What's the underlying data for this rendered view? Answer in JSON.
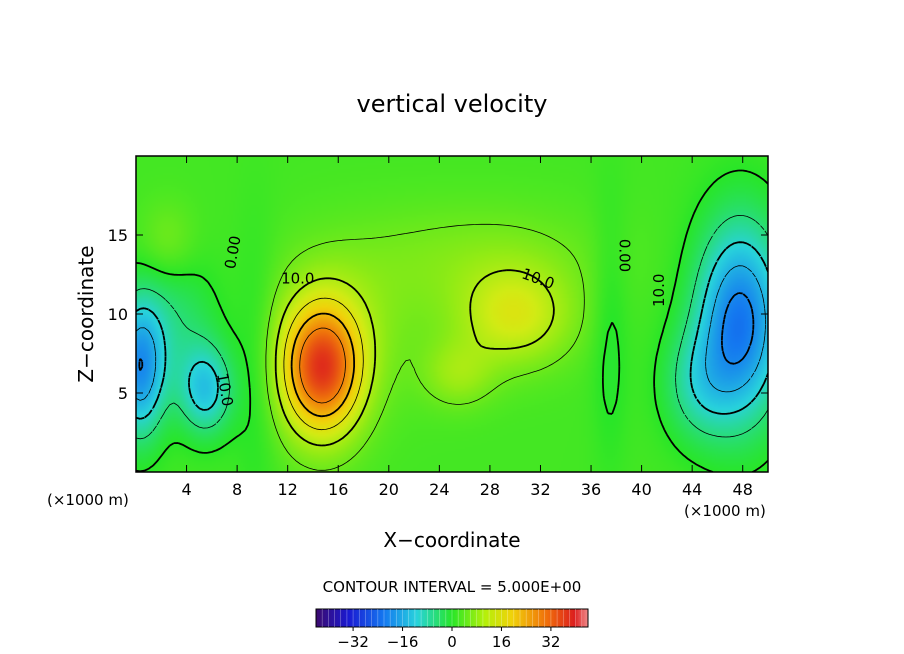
{
  "chart_data": {
    "type": "heatmap",
    "title": "vertical velocity",
    "xlabel": "X−coordinate",
    "ylabel": "Z−coordinate",
    "x_unit_left": "(×1000 m)",
    "x_unit_right": "(×1000 m)",
    "xlim": [
      0,
      50
    ],
    "ylim": [
      0,
      20
    ],
    "x_ticks": [
      4,
      8,
      12,
      16,
      20,
      24,
      28,
      32,
      36,
      40,
      44,
      48
    ],
    "y_ticks": [
      5,
      10,
      15
    ],
    "contour_interval_label": "CONTOUR INTERVAL = 5.000E+00",
    "colorbar": {
      "min": -44,
      "max": 44,
      "ticks": [
        -32,
        -16,
        0,
        16,
        32
      ],
      "tick_labels": [
        "−32",
        "−16",
        "0",
        "16",
        "32"
      ]
    },
    "contour_labels": [
      {
        "text": "0.00",
        "x": 7.7,
        "y": 13.9,
        "angle": -80
      },
      {
        "text": "10.0",
        "x": 12.8,
        "y": 12.2,
        "angle": 0
      },
      {
        "text": "10.0",
        "x": 31.8,
        "y": 12.2,
        "angle": 20
      },
      {
        "text": "0.00",
        "x": 38.6,
        "y": 13.7,
        "angle": 90
      },
      {
        "text": "10.0",
        "x": 41.4,
        "y": 11.5,
        "angle": -90
      },
      {
        "text": "10.0",
        "x": 7.0,
        "y": 5.2,
        "angle": 80
      }
    ],
    "field_features": [
      {
        "kind": "updraft",
        "x": 14.7,
        "y": 6.5,
        "peak": 30
      },
      {
        "kind": "updraft",
        "x": 30,
        "y": 9.8,
        "peak": 13
      },
      {
        "kind": "downdraft",
        "x": 48,
        "y": 9.5,
        "peak": -24
      },
      {
        "kind": "downdraft",
        "x": 0.3,
        "y": 6.5,
        "peak": -20
      },
      {
        "kind": "downdraft",
        "x": 5.5,
        "y": 5.2,
        "peak": -14
      }
    ]
  }
}
